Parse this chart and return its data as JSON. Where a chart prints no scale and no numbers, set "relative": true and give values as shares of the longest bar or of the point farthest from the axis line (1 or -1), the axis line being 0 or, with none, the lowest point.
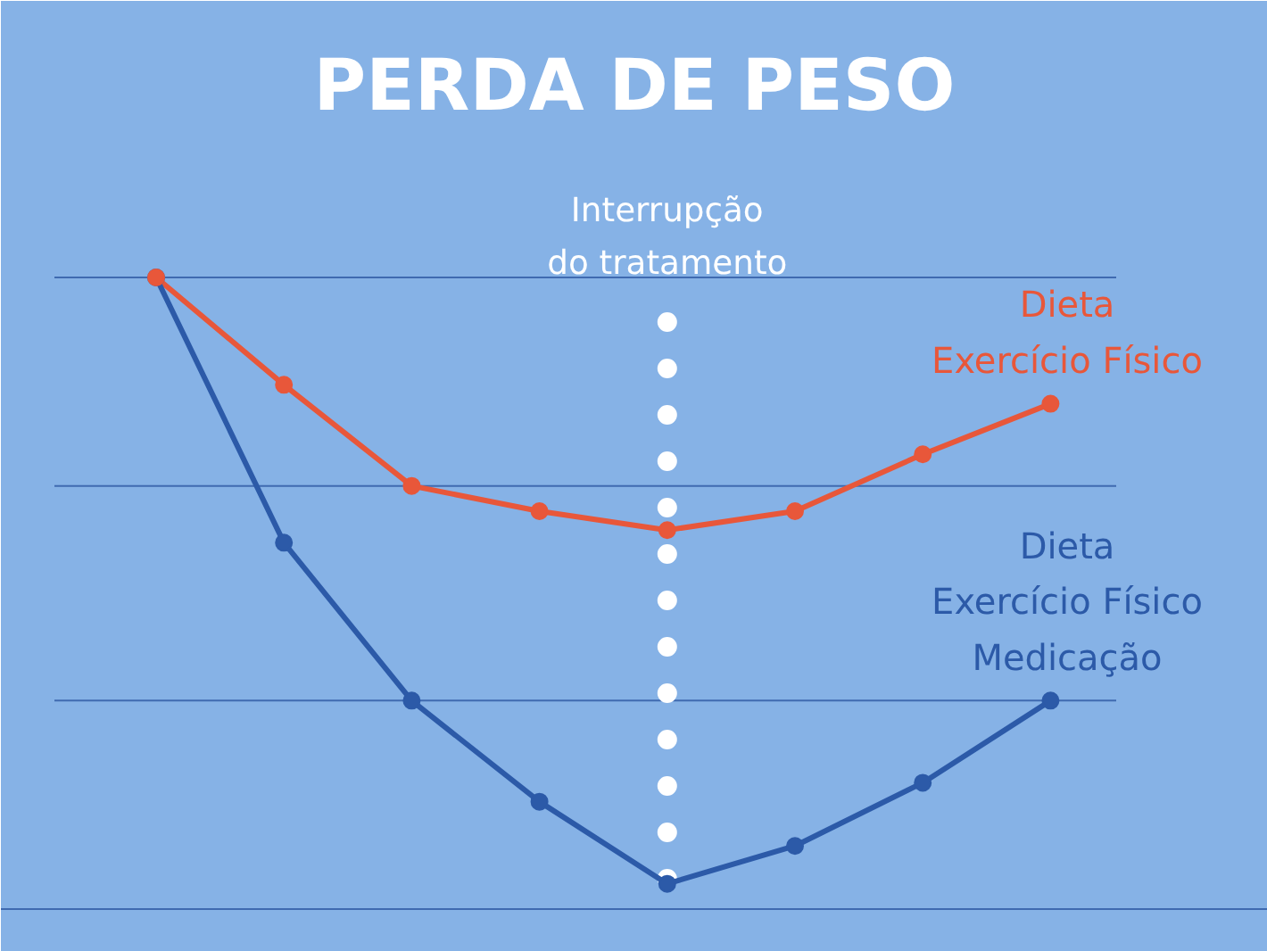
{
  "chart_data": {
    "type": "line",
    "title": "PERDA DE PESO",
    "relative": true,
    "legend": false,
    "marker": "circle",
    "line_style": "solid",
    "categories": [
      null,
      null,
      null,
      null,
      null,
      null,
      null,
      null
    ],
    "series": [
      {
        "name": "Dieta\nExercício Físico",
        "color": "#e8573a",
        "values": [
          1,
          0.83,
          0.67,
          0.63,
          0.6,
          0.63,
          0.72,
          0.8
        ]
      },
      {
        "name": "Dieta\nExercício Físico\nMedicação",
        "color": "#2c5aa8",
        "values": [
          1,
          0.58,
          0.33,
          0.17,
          0.04,
          0.1,
          0.2,
          0.33
        ]
      }
    ],
    "ref_lines": [
      {
        "axis": "y",
        "value": 1,
        "color": "#3f6ab0"
      },
      {
        "axis": "y",
        "value": 0.67,
        "color": "#3f6ab0"
      },
      {
        "axis": "y",
        "value": 0.33,
        "color": "#3f6ab0"
      }
    ],
    "annotations": [
      "Interrupção\ndo tratamento"
    ]
  }
}
